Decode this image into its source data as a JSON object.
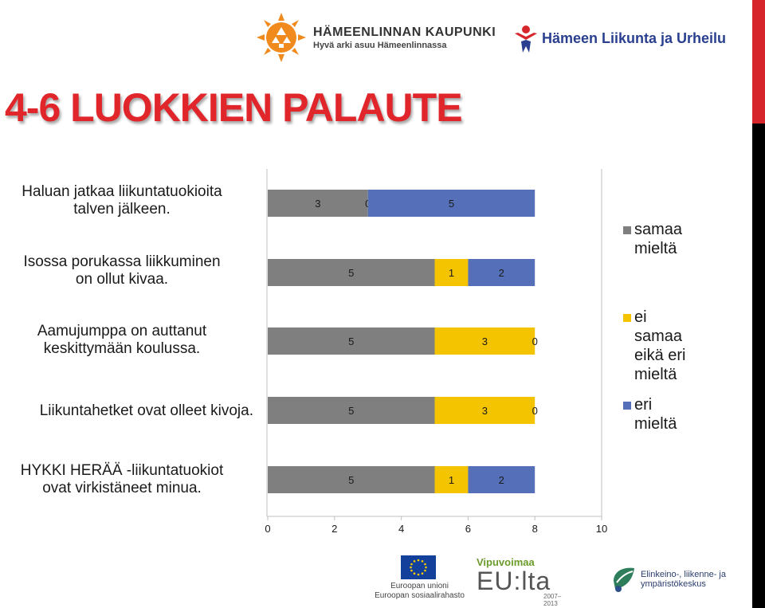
{
  "header": {
    "city_logo_line1": "HÄMEENLINNAN KAUPUNKI",
    "city_logo_line2": "Hyvä arki asuu Hämeenlinnassa",
    "sport_logo": "Hämeen Liikunta ja Urheilu"
  },
  "title": "4-6 LUOKKIEN PALAUTE",
  "chart_data": {
    "type": "bar",
    "orientation": "horizontal",
    "stacked": true,
    "categories": [
      "Haluan jatkaa liikuntatuokioita talven jälkeen.",
      "Isossa porukassa liikkuminen on ollut kivaa.",
      "Aamujumppa on auttanut keskittymään koulussa.",
      "Liikuntahetket ovat olleet kivoja.",
      "HYKKI HERÄÄ -liikuntatuokiot ovat virkistäneet minua."
    ],
    "series": [
      {
        "name": "samaa mieltä",
        "color": "#7f7f7f",
        "values": [
          3,
          5,
          5,
          5,
          5
        ]
      },
      {
        "name": "ei samaa eikä eri mieltä",
        "color": "#f5c400",
        "values": [
          0,
          1,
          3,
          3,
          1
        ]
      },
      {
        "name": "eri mieltä",
        "color": "#5570b8",
        "values": [
          5,
          2,
          0,
          0,
          2
        ]
      }
    ],
    "category_labels": [
      [
        "Haluan jatkaa liikuntatuokioita",
        "talven jälkeen."
      ],
      [
        "Isossa porukassa liikkuminen",
        "on ollut kivaa."
      ],
      [
        "Aamujumppa on auttanut",
        "keskittymään koulussa."
      ],
      [
        "Liikuntahetket ovat olleet kivoja."
      ],
      [
        "HYKKI HERÄÄ -liikuntatuokiot",
        "ovat virkistäneet minua."
      ]
    ],
    "legend_labels": [
      [
        "samaa",
        "mieltä"
      ],
      [
        "ei",
        "samaa",
        "eikä eri",
        "mieltä"
      ],
      [
        "eri",
        "mieltä"
      ]
    ],
    "x_ticks": [
      "0",
      "2",
      "4",
      "6",
      "8",
      "10"
    ],
    "xlim": [
      0,
      10
    ],
    "legend_position": "right",
    "grid": false
  },
  "footer": {
    "eu_line1": "Euroopan unioni",
    "eu_line2": "Euroopan sosiaalirahasto",
    "vip_line1": "Vipuvoimaa",
    "vip_line2": "EU:lta",
    "vip_years": "2007–2013",
    "ely_line1": "Elinkeino-, liikenne- ja",
    "ely_line2": "ympäristökeskus"
  }
}
